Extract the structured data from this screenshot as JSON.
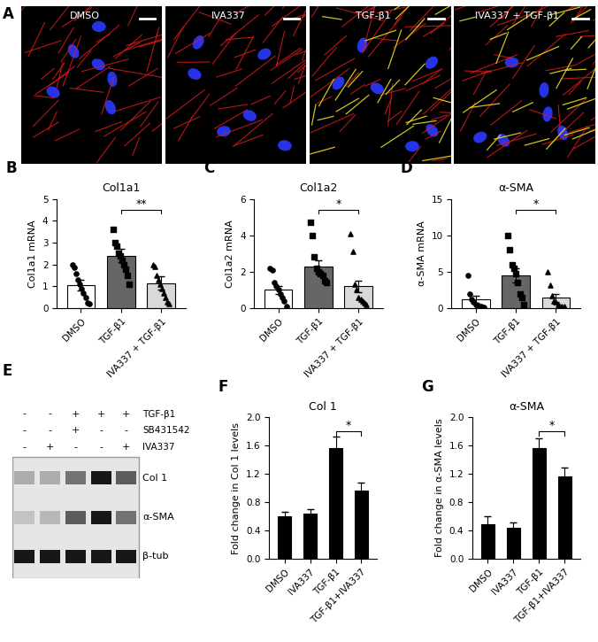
{
  "panel_A": {
    "letter": "A",
    "images": [
      {
        "label": "DMSO"
      },
      {
        "label": "IVA337"
      },
      {
        "label": "TGF-β1"
      },
      {
        "label": "IVA337 + TGF-β1"
      }
    ]
  },
  "chart_data": [
    {
      "letter": "B",
      "type": "bar",
      "title": "Col1a1",
      "y_label": "Col1a1 mRNA",
      "categories": [
        "DMSO",
        "TGF-β1",
        "IVA337 + TGF-β1"
      ],
      "values": [
        1.05,
        2.4,
        1.15
      ],
      "errors": [
        0.25,
        0.3,
        0.3
      ],
      "colors": [
        "#ffffff",
        "#666666",
        "#d9d9d9"
      ],
      "points": [
        {
          "marker": "circle",
          "values": [
            2.0,
            1.85,
            1.6,
            1.3,
            1.1,
            0.9,
            0.7,
            0.5,
            0.25,
            0.2
          ]
        },
        {
          "marker": "square",
          "values": [
            3.6,
            3.0,
            2.85,
            2.5,
            2.4,
            2.2,
            2.0,
            1.8,
            1.5,
            1.1
          ]
        },
        {
          "marker": "triangle",
          "values": [
            2.0,
            1.9,
            1.5,
            1.3,
            1.1,
            0.9,
            0.7,
            0.5,
            0.3,
            0.2
          ]
        }
      ],
      "ylim": [
        0,
        5
      ],
      "yticks": [
        0,
        1,
        2,
        3,
        4,
        5
      ],
      "annotations": [
        {
          "text": "**",
          "between": [
            "TGF-β1",
            "IVA337 + TGF-β1"
          ]
        }
      ]
    },
    {
      "letter": "C",
      "type": "bar",
      "title": "Col1a2",
      "y_label": "Col1a2 mRNA",
      "categories": [
        "DMSO",
        "TGF-β1",
        "IVA337 + TGF-β1"
      ],
      "values": [
        1.0,
        2.3,
        1.2
      ],
      "errors": [
        0.2,
        0.35,
        0.3
      ],
      "colors": [
        "#ffffff",
        "#666666",
        "#d9d9d9"
      ],
      "points": [
        {
          "marker": "circle",
          "values": [
            2.2,
            2.1,
            1.4,
            1.2,
            1.0,
            0.8,
            0.6,
            0.4,
            0.1
          ]
        },
        {
          "marker": "square",
          "values": [
            4.7,
            4.0,
            2.8,
            2.2,
            2.0,
            1.9,
            1.8,
            1.5,
            1.4
          ]
        },
        {
          "marker": "triangle",
          "values": [
            4.1,
            3.1,
            1.3,
            1.0,
            0.6,
            0.5,
            0.4,
            0.3,
            0.2
          ]
        }
      ],
      "ylim": [
        0,
        6
      ],
      "yticks": [
        0,
        2,
        4,
        6
      ],
      "annotations": [
        {
          "text": "*",
          "between": [
            "TGF-β1",
            "IVA337 + TGF-β1"
          ]
        }
      ]
    },
    {
      "letter": "D",
      "type": "bar",
      "title": "α-SMA",
      "y_label": "α-SMA mRNA",
      "categories": [
        "DMSO",
        "TGF-β1",
        "IVA337 + TGF-β1"
      ],
      "values": [
        1.2,
        4.5,
        1.4
      ],
      "errors": [
        0.5,
        1.0,
        0.5
      ],
      "colors": [
        "#ffffff",
        "#666666",
        "#d9d9d9"
      ],
      "points": [
        {
          "marker": "circle",
          "values": [
            4.5,
            2.0,
            1.2,
            0.8,
            0.5,
            0.3,
            0.2,
            0.2,
            0.1
          ]
        },
        {
          "marker": "square",
          "values": [
            10.0,
            8.0,
            6.0,
            5.5,
            4.8,
            3.5,
            2.0,
            1.5,
            0.5
          ]
        },
        {
          "marker": "triangle",
          "values": [
            5.0,
            3.2,
            1.7,
            1.0,
            0.8,
            0.5,
            0.3,
            0.2,
            0.2
          ]
        }
      ],
      "ylim": [
        0,
        15
      ],
      "yticks": [
        0,
        5,
        10,
        15
      ],
      "annotations": [
        {
          "text": "*",
          "between": [
            "TGF-β1",
            "IVA337 + TGF-β1"
          ]
        }
      ]
    },
    {
      "letter": "F",
      "type": "bar",
      "title": "Col 1",
      "y_label": "Fold change in Col 1 levels",
      "categories": [
        "DMSO",
        "IVA337",
        "TGF-β1",
        "TGF-β1+IVA337"
      ],
      "values": [
        0.6,
        0.64,
        1.57,
        0.96
      ],
      "errors": [
        0.06,
        0.06,
        0.16,
        0.12
      ],
      "colors": [
        "#000000",
        "#000000",
        "#000000",
        "#000000"
      ],
      "ylim": [
        0,
        2.0
      ],
      "yticks": [
        {
          "value": 0,
          "label": "0.0"
        },
        {
          "value": 0.4,
          "label": "0.4"
        },
        {
          "value": 0.8,
          "label": "0.8"
        },
        {
          "value": 1.2,
          "label": "1.2"
        },
        {
          "value": 1.6,
          "label": "1.6"
        },
        {
          "value": 2.0,
          "label": "2.0"
        }
      ],
      "annotations": [
        {
          "text": "*",
          "between": [
            "TGF-β1",
            "TGF-β1+IVA337"
          ]
        }
      ]
    },
    {
      "letter": "G",
      "type": "bar",
      "title": "α-SMA",
      "y_label": "Fold change in α-SMA levels",
      "categories": [
        "DMSO",
        "IVA337",
        "TGF-β1",
        "TGF-β1+IVA337"
      ],
      "values": [
        0.49,
        0.43,
        1.57,
        1.16
      ],
      "errors": [
        0.11,
        0.08,
        0.13,
        0.13
      ],
      "colors": [
        "#000000",
        "#000000",
        "#000000",
        "#000000"
      ],
      "ylim": [
        0,
        2.0
      ],
      "yticks": [
        {
          "value": 0,
          "label": "0.0"
        },
        {
          "value": 0.4,
          "label": "0.4"
        },
        {
          "value": 0.8,
          "label": "0.8"
        },
        {
          "value": 1.2,
          "label": "1.2"
        },
        {
          "value": 1.6,
          "label": "1.6"
        },
        {
          "value": 2.0,
          "label": "2.0"
        }
      ],
      "annotations": [
        {
          "text": "*",
          "between": [
            "TGF-β1",
            "TGF-β1+IVA337"
          ]
        }
      ]
    }
  ],
  "panel_E": {
    "letter": "E",
    "treatments": [
      {
        "label": "TGF-β1",
        "signs": [
          "-",
          "-",
          "+",
          "+",
          "+"
        ]
      },
      {
        "label": "SB431542",
        "signs": [
          "-",
          "-",
          "+",
          "-",
          "-"
        ]
      },
      {
        "label": "IVA337",
        "signs": [
          "-",
          "+",
          "-",
          "-",
          "+"
        ]
      }
    ],
    "bands": [
      {
        "label": "Col 1",
        "intensity": [
          0.25,
          0.25,
          0.5,
          0.9,
          0.6
        ]
      },
      {
        "label": "α-SMA",
        "intensity": [
          0.15,
          0.2,
          0.6,
          0.9,
          0.5
        ]
      },
      {
        "label": "β-tub",
        "intensity": [
          0.9,
          0.9,
          0.9,
          0.9,
          0.9
        ]
      }
    ]
  }
}
